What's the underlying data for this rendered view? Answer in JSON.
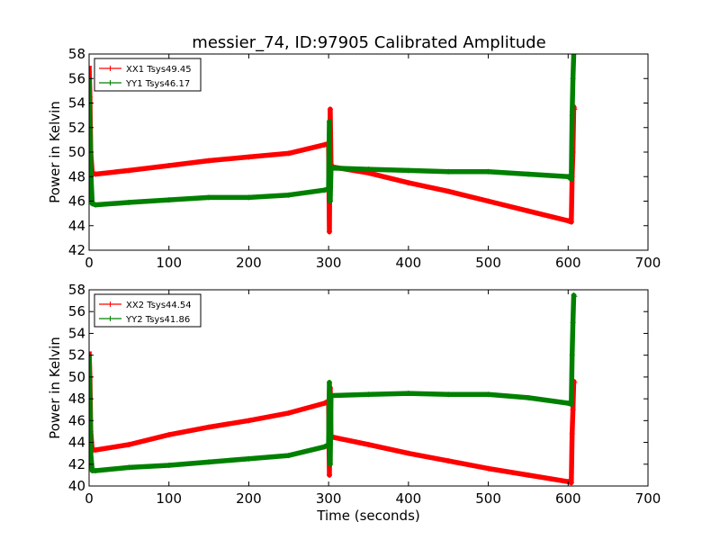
{
  "title": "messier_74, ID:97905 Calibrated Amplitude",
  "colors": {
    "red": "#ff0000",
    "green": "#008000"
  },
  "chart_data": [
    {
      "type": "line",
      "title": "messier_74, ID:97905 Calibrated Amplitude",
      "xlabel": "",
      "ylabel": "Power in Kelvin",
      "xlim": [
        0,
        700
      ],
      "ylim": [
        42,
        58
      ],
      "xticks": [
        0,
        100,
        200,
        300,
        400,
        500,
        600,
        700
      ],
      "yticks": [
        42,
        44,
        46,
        48,
        50,
        52,
        54,
        56,
        58
      ],
      "legend_position": "top-left",
      "series": [
        {
          "name": "XX1 Tsys49.45",
          "color": "#ff0000",
          "x": [
            0,
            1,
            2,
            4,
            8,
            50,
            100,
            150,
            200,
            250,
            295,
            300,
            301,
            302,
            303,
            304,
            350,
            400,
            450,
            500,
            550,
            600,
            604,
            605,
            606,
            607,
            608
          ],
          "y": [
            57.0,
            54.5,
            50.0,
            48.3,
            48.2,
            48.5,
            48.9,
            49.3,
            49.6,
            49.9,
            50.6,
            50.7,
            43.5,
            53.5,
            49.0,
            48.8,
            48.3,
            47.5,
            46.8,
            46.0,
            45.2,
            44.4,
            44.3,
            48.0,
            50.0,
            53.7,
            53.5
          ]
        },
        {
          "name": "YY1 Tsys46.17",
          "color": "#008000",
          "x": [
            0,
            1,
            2,
            4,
            8,
            50,
            100,
            150,
            200,
            250,
            295,
            300,
            301,
            302,
            303,
            304,
            350,
            400,
            450,
            500,
            550,
            600,
            604,
            605,
            606,
            607,
            608
          ],
          "y": [
            56.0,
            52.0,
            48.5,
            45.8,
            45.7,
            45.9,
            46.1,
            46.3,
            46.3,
            46.5,
            46.9,
            47.0,
            52.5,
            46.0,
            48.7,
            48.7,
            48.6,
            48.5,
            48.4,
            48.4,
            48.2,
            48.0,
            47.8,
            53.0,
            56.0,
            58.0,
            58.0
          ]
        }
      ]
    },
    {
      "type": "line",
      "title": "",
      "xlabel": "Time (seconds)",
      "ylabel": "Power in Kelvin",
      "xlim": [
        0,
        700
      ],
      "ylim": [
        40,
        58
      ],
      "xticks": [
        0,
        100,
        200,
        300,
        400,
        500,
        600,
        700
      ],
      "yticks": [
        40,
        42,
        44,
        46,
        48,
        50,
        52,
        54,
        56,
        58
      ],
      "legend_position": "top-left",
      "series": [
        {
          "name": "XX2 Tsys44.54",
          "color": "#ff0000",
          "x": [
            0,
            1,
            2,
            4,
            8,
            50,
            100,
            150,
            200,
            250,
            295,
            300,
            301,
            302,
            303,
            304,
            350,
            400,
            450,
            500,
            550,
            600,
            604,
            605,
            606,
            607,
            608
          ],
          "y": [
            52.3,
            50.0,
            45.0,
            43.3,
            43.3,
            43.8,
            44.7,
            45.4,
            46.0,
            46.7,
            47.6,
            47.8,
            41.0,
            49.0,
            44.5,
            44.5,
            43.8,
            43.0,
            42.3,
            41.6,
            41.0,
            40.4,
            40.3,
            44.8,
            47.0,
            49.6,
            49.5
          ]
        },
        {
          "name": "YY2 Tsys41.86",
          "color": "#008000",
          "x": [
            0,
            1,
            2,
            4,
            8,
            50,
            100,
            150,
            200,
            250,
            295,
            300,
            301,
            302,
            303,
            304,
            350,
            400,
            450,
            500,
            550,
            600,
            604,
            605,
            606,
            607,
            608
          ],
          "y": [
            52.0,
            48.0,
            43.0,
            41.4,
            41.4,
            41.7,
            41.9,
            42.2,
            42.5,
            42.8,
            43.6,
            43.8,
            49.5,
            42.0,
            48.3,
            48.3,
            48.4,
            48.5,
            48.4,
            48.4,
            48.1,
            47.6,
            47.5,
            52.0,
            55.0,
            57.5,
            57.4
          ]
        }
      ]
    }
  ]
}
